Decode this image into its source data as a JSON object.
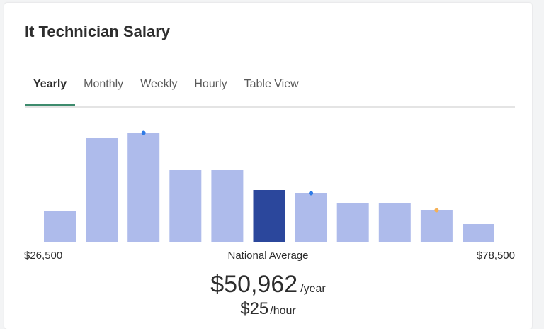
{
  "title": "It Technician Salary",
  "tabs": [
    {
      "label": "Yearly",
      "active": true
    },
    {
      "label": "Monthly",
      "active": false
    },
    {
      "label": "Weekly",
      "active": false
    },
    {
      "label": "Hourly",
      "active": false
    },
    {
      "label": "Table View",
      "active": false
    }
  ],
  "colors": {
    "bar": "#aebbeb",
    "bar_highlight": "#2b479c",
    "tab_underline": "#3d8b6d",
    "marker_blue": "#2f7be6",
    "marker_orange": "#f5b157"
  },
  "chart_data": {
    "type": "bar",
    "values": [
      44,
      147,
      155,
      102,
      102,
      74,
      70,
      56,
      56,
      46,
      26
    ],
    "highlight_index": 5,
    "markers": [
      {
        "bar": 2,
        "color": "marker_blue"
      },
      {
        "bar": 6,
        "color": "marker_blue"
      },
      {
        "bar": 9,
        "color": "marker_orange"
      }
    ],
    "x_min_label": "$26,500",
    "x_mid_label": "National Average",
    "x_max_label": "$78,500"
  },
  "average": {
    "yearly": "$50,962",
    "yearly_unit": "/year",
    "hourly": "$25",
    "hourly_unit": "/hour"
  }
}
